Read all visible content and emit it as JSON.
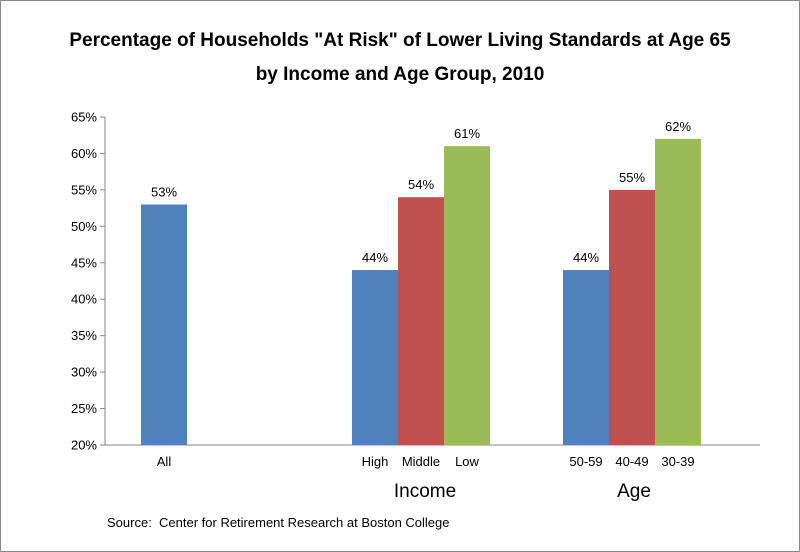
{
  "title_line1": "Percentage of Households \"At Risk\" of Lower Living Standards at Age 65",
  "title_line2": "by Income and Age Group, 2010",
  "source": "Source:  Center for Retirement Research at Boston College",
  "colors": {
    "blue": "#4f81bd",
    "red": "#c0504d",
    "green": "#9bbb59"
  },
  "chart_data": {
    "type": "bar",
    "ylim": [
      20,
      65
    ],
    "yticks": [
      20,
      25,
      30,
      35,
      40,
      45,
      50,
      55,
      60,
      65
    ],
    "ytick_labels": [
      "20%",
      "25%",
      "30%",
      "35%",
      "40%",
      "45%",
      "50%",
      "55%",
      "60%",
      "65%"
    ],
    "grid": false,
    "groups": [
      {
        "label": "",
        "bars": [
          {
            "category": "All",
            "value": 53,
            "label": "53%",
            "color": "blue"
          }
        ]
      },
      {
        "label": "Income",
        "bars": [
          {
            "category": "High",
            "value": 44,
            "label": "44%",
            "color": "blue"
          },
          {
            "category": "Middle",
            "value": 54,
            "label": "54%",
            "color": "red"
          },
          {
            "category": "Low",
            "value": 61,
            "label": "61%",
            "color": "green"
          }
        ]
      },
      {
        "label": "Age",
        "bars": [
          {
            "category": "50-59",
            "value": 44,
            "label": "44%",
            "color": "blue"
          },
          {
            "category": "40-49",
            "value": 55,
            "label": "55%",
            "color": "red"
          },
          {
            "category": "30-39",
            "value": 62,
            "label": "62%",
            "color": "green"
          }
        ]
      }
    ]
  }
}
